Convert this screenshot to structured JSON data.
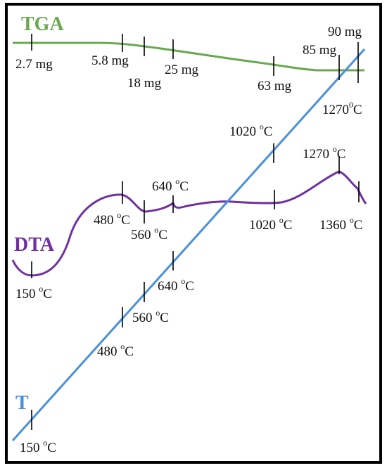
{
  "chart_data": {
    "type": "line",
    "series": [
      {
        "name": "TGA",
        "color": "#6aa84f",
        "markers": [
          {
            "value": "2.7 mg"
          },
          {
            "value": "5.8 mg"
          },
          {
            "value": "18 mg"
          },
          {
            "value": "25 mg"
          },
          {
            "value": "63 mg"
          },
          {
            "value": "85 mg"
          },
          {
            "value": "90 mg"
          },
          {
            "value": "1270",
            "sup": "0",
            "unit": "C"
          }
        ]
      },
      {
        "name": "DTA",
        "color": "#7030a0",
        "markers": [
          {
            "value": "150 ",
            "sup": "o",
            "unit": "C"
          },
          {
            "value": "480 ",
            "sup": "o",
            "unit": "C"
          },
          {
            "value": "560 ",
            "sup": "o",
            "unit": "C"
          },
          {
            "value": "640 ",
            "sup": "o",
            "unit": "C"
          },
          {
            "value": "1020 ",
            "sup": "o",
            "unit": "C"
          },
          {
            "value": "1270 ",
            "sup": "o",
            "unit": "C"
          },
          {
            "value": "1360 ",
            "sup": "o",
            "unit": "C"
          }
        ]
      },
      {
        "name": "T",
        "color": "#4a90d9",
        "markers": [
          {
            "value": "150 ",
            "sup": "o",
            "unit": "C"
          },
          {
            "value": "480 ",
            "sup": "o",
            "unit": "C"
          },
          {
            "value": "560 ",
            "sup": "o",
            "unit": "C"
          },
          {
            "value": "640 ",
            "sup": "o",
            "unit": "C"
          },
          {
            "value": "1020 ",
            "sup": "o",
            "unit": "C"
          }
        ]
      }
    ]
  }
}
